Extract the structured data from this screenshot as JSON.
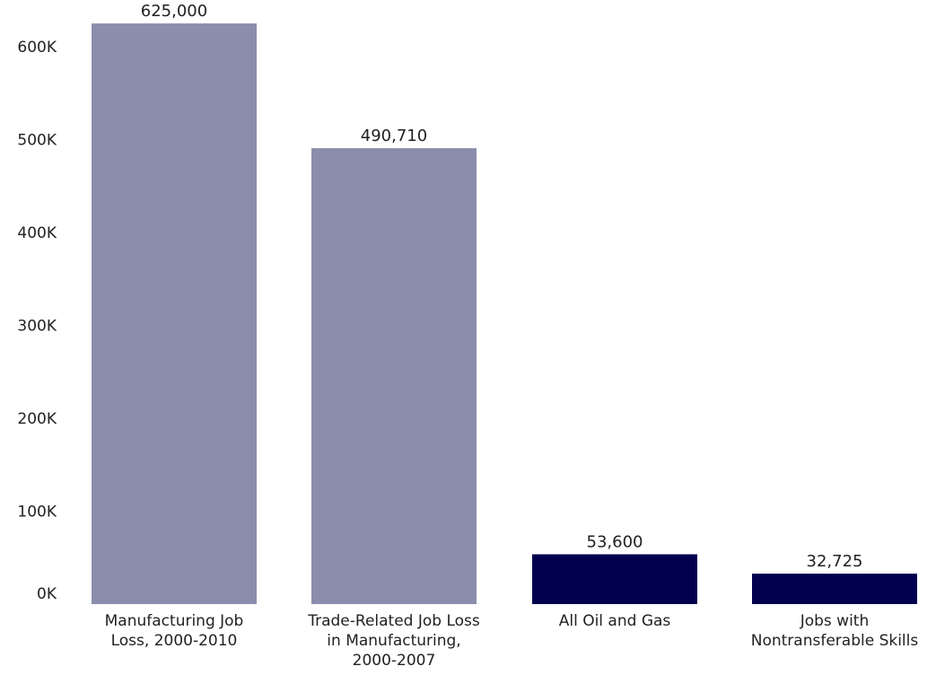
{
  "chart_data": {
    "type": "bar",
    "title": "",
    "xlabel": "",
    "ylabel": "",
    "ylim": [
      0,
      650000
    ],
    "yticks": [
      {
        "value": 0,
        "label": "0K"
      },
      {
        "value": 100000,
        "label": "100K"
      },
      {
        "value": 200000,
        "label": "200K"
      },
      {
        "value": 300000,
        "label": "300K"
      },
      {
        "value": 400000,
        "label": "400K"
      },
      {
        "value": 500000,
        "label": "500K"
      },
      {
        "value": 600000,
        "label": "600K"
      }
    ],
    "grid": false,
    "categories": [
      [
        "Manufacturing Job",
        "Loss, 2000-2010"
      ],
      [
        "Trade-Related Job Loss",
        "in Manufacturing,",
        "2000-2007"
      ],
      [
        "All Oil and Gas"
      ],
      [
        "Jobs with",
        "Nontransferable Skills"
      ]
    ],
    "values": [
      625000,
      490710,
      53600,
      32725
    ],
    "value_labels": [
      "625,000",
      "490,710",
      "53,600",
      "32,725"
    ],
    "bar_colors": [
      "#8a8dac",
      "#8a8dac",
      "#00004f",
      "#00004f"
    ]
  }
}
